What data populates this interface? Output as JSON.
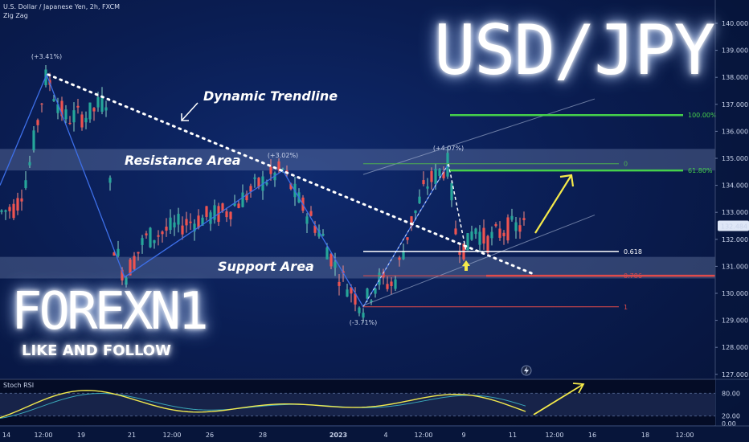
{
  "header": {
    "symbol_line": "U.S. Dollar / Japanese Yen, 2h, FXCM",
    "indicator": "Zig Zag"
  },
  "overlay": {
    "title": "USD/JPY",
    "brand": "FOREXN1",
    "brand_sub": "LIKE AND FOLLOW",
    "trendline_label": "Dynamic Trendline",
    "resistance_label": "Resistance Area",
    "support_label": "Support Area"
  },
  "price_axis": {
    "ticks": [
      "140.000",
      "139.000",
      "138.000",
      "137.000",
      "136.000",
      "135.000",
      "134.000",
      "133.000",
      "132.000",
      "131.000",
      "130.000",
      "129.000",
      "128.000",
      "127.000"
    ],
    "current_price": "132.484",
    "current_price_color": "#dfe7f7"
  },
  "rsi_panel": {
    "title": "Stoch RSI",
    "ticks": [
      "80.00",
      "20.00",
      "0.00"
    ],
    "line_color": "#f2e94e",
    "signal_color": "#3aa7b8"
  },
  "time_axis": {
    "ticks": [
      "14",
      "12:00",
      "19",
      "21",
      "12:00",
      "26",
      "28",
      "2023",
      "4",
      "12:00",
      "9",
      "11",
      "12:00",
      "16",
      "18",
      "12:00"
    ]
  },
  "annotations": {
    "zz_high_1": "(+3.41%)",
    "zz_high_2": "(+3.02%)",
    "zz_high_3": "(+4.07%)",
    "zz_low": "(-3.71%)",
    "fib_0": "0",
    "fib_618": "0.618",
    "fib_786": "0.786",
    "fib_1": "1",
    "target_100": "100.00%",
    "target_618": "61.80%"
  },
  "chart_data": {
    "type": "candlestick",
    "title": "U.S. Dollar / Japanese Yen, 2h, FXCM",
    "ylim": [
      126.8,
      141.2
    ],
    "y_ticks": [
      140,
      139,
      138,
      137,
      136,
      135,
      134,
      133,
      132,
      131,
      130,
      129,
      128,
      127
    ],
    "current_price": 132.484,
    "resistance_area": [
      134.55,
      135.35
    ],
    "support_area": [
      130.55,
      131.35
    ],
    "zigzag_points": [
      {
        "label": "(+3.41%)",
        "price": 138.1
      },
      {
        "label": "",
        "price": 130.6
      },
      {
        "label": "(+3.02%)",
        "price": 134.55
      },
      {
        "label": "(-3.71%)",
        "price": 129.5
      },
      {
        "label": "(+4.07%)",
        "price": 134.8
      }
    ],
    "fib_levels": [
      {
        "label": "0",
        "price": 134.8
      },
      {
        "label": "0.618",
        "price": 131.55
      },
      {
        "label": "0.786",
        "price": 130.65
      },
      {
        "label": "1",
        "price": 129.5
      }
    ],
    "targets": [
      {
        "label": "100.00%",
        "price": 136.6
      },
      {
        "label": "61.80%",
        "price": 134.55
      }
    ],
    "stoch_rsi": {
      "ylim": [
        0,
        100
      ],
      "levels": [
        80,
        20
      ]
    }
  }
}
